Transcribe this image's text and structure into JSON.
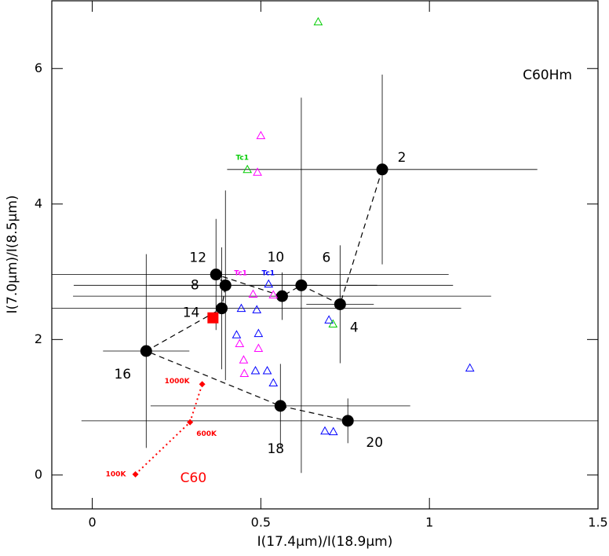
{
  "chart_data": {
    "type": "scatter",
    "x_label": "I(17.4μm)/I(18.9μm)",
    "y_label": "I(7.0μm)/I(8.5μm)",
    "xlim": [
      -0.12,
      1.5
    ],
    "ylim": [
      -0.5,
      7
    ],
    "xticks": [
      0,
      0.5,
      1,
      1.5
    ],
    "yticks": [
      0,
      2,
      4,
      6
    ],
    "series": [
      {
        "color": "#000000",
        "marker": "circle",
        "connect": "dashed",
        "labels": [
          "2",
          "4",
          "6",
          "10",
          "12",
          "8",
          "14",
          "16",
          "18",
          "20"
        ],
        "x": [
          0.86,
          0.735,
          0.62,
          0.563,
          0.367,
          0.395,
          0.384,
          0.16,
          0.558,
          0.758
        ],
        "y": [
          4.51,
          2.52,
          2.8,
          2.64,
          2.96,
          2.8,
          2.46,
          1.83,
          1.02,
          0.8
        ],
        "xerr": [
          0.46,
          0.1,
          0.45,
          0.62,
          0.69,
          0.45,
          0.71,
          0.128,
          0.385,
          0.79
        ],
        "yerr": [
          1.4,
          0.87,
          2.77,
          0.35,
          0.82,
          1.4,
          0.9,
          1.43,
          0.62,
          0.33
        ]
      },
      {
        "color": "#ff0000",
        "marker": "diamond",
        "connect": "dotted",
        "labels": [
          "100K",
          "600K",
          "1000K"
        ],
        "x": [
          0.128,
          0.29,
          0.326
        ],
        "y": [
          0.01,
          0.78,
          1.34
        ]
      },
      {
        "color": "#ff0000",
        "marker": "square",
        "x": [
          0.358
        ],
        "y": [
          2.32
        ]
      },
      {
        "color": "#0000ff",
        "marker": "triangle",
        "x": [
          0.69,
          0.715,
          1.12,
          0.537,
          0.519,
          0.484,
          0.428,
          0.493,
          0.442,
          0.488,
          0.702,
          0.523
        ],
        "y": [
          0.65,
          0.64,
          1.58,
          1.36,
          1.54,
          1.54,
          2.07,
          2.09,
          2.46,
          2.44,
          2.29,
          2.82
        ]
      },
      {
        "color": "#ff00ff",
        "marker": "triangle",
        "x": [
          0.5,
          0.49,
          0.437,
          0.449,
          0.451,
          0.493,
          0.477,
          0.537
        ],
        "y": [
          5.01,
          4.47,
          1.94,
          1.7,
          1.5,
          1.87,
          2.67,
          2.66
        ]
      },
      {
        "color": "#00cc00",
        "marker": "triangle",
        "x": [
          0.67,
          0.46,
          0.714
        ],
        "y": [
          6.69,
          4.51,
          2.23
        ]
      }
    ],
    "annotations": [
      {
        "text": "C60Hm",
        "x": 1.35,
        "y": 5.9,
        "color": "#000000"
      },
      {
        "text": "C60",
        "x": 0.3,
        "y": -0.05,
        "color": "#ff0000"
      },
      {
        "text": "Tc1",
        "x": 0.445,
        "y": 4.68,
        "color": "#00cc00"
      },
      {
        "text": "Tc1",
        "x": 0.44,
        "y": 2.98,
        "color": "#ff00ff"
      },
      {
        "text": "Tc1",
        "x": 0.522,
        "y": 2.98,
        "color": "#0000ff"
      }
    ]
  }
}
